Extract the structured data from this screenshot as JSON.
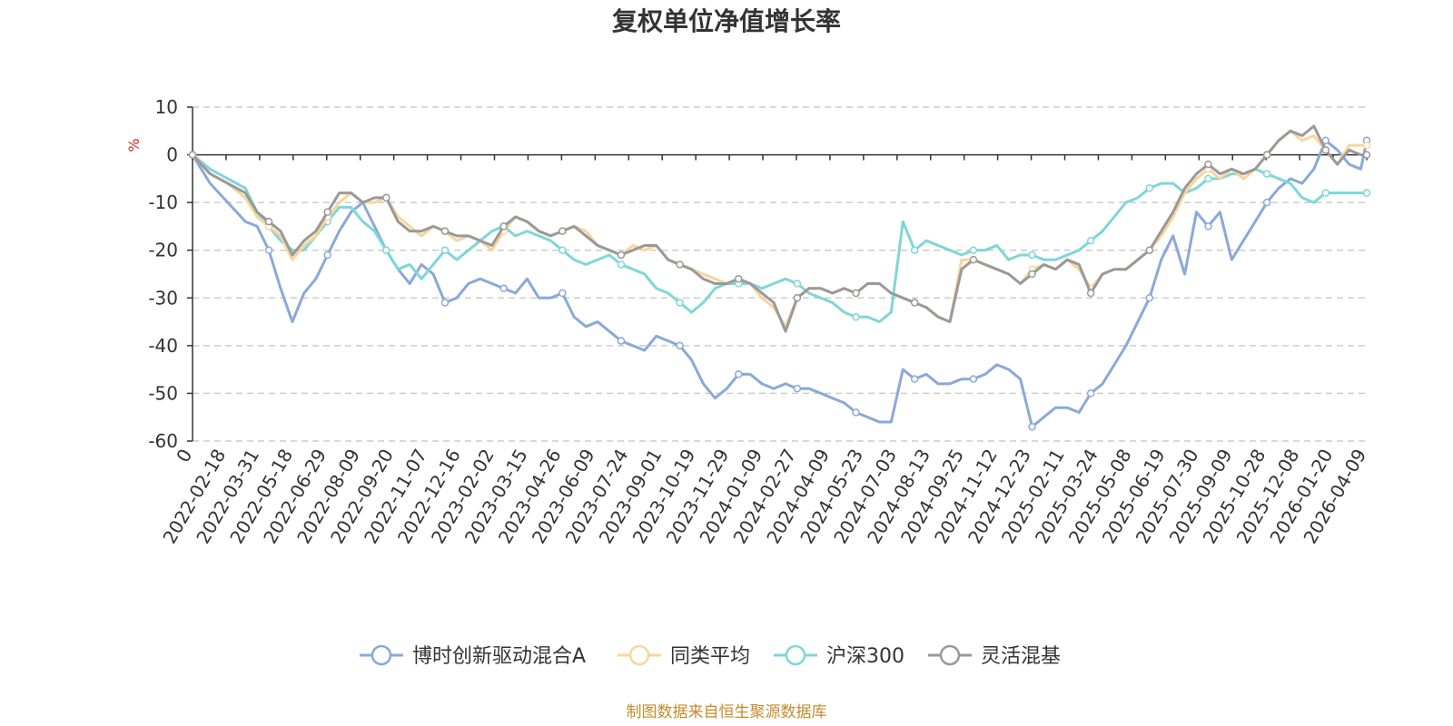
{
  "chart_data": {
    "type": "line",
    "title": "复权单位净值增长率",
    "ylabel": "%",
    "ylim": [
      -60,
      10
    ],
    "yticks": [
      10,
      0,
      -10,
      -20,
      -30,
      -40,
      -50,
      -60
    ],
    "grid": true,
    "legend_position": "bottom",
    "x_labels": [
      "0",
      "2022-02-18",
      "2022-03-31",
      "2022-05-18",
      "2022-06-29",
      "2022-08-09",
      "2022-09-20",
      "2022-11-07",
      "2022-12-16",
      "2023-02-02",
      "2023-03-15",
      "2023-04-26",
      "2023-06-09",
      "2023-07-24",
      "2023-09-01",
      "2023-10-19",
      "2023-11-29",
      "2024-01-09",
      "2024-02-27",
      "2024-04-09",
      "2024-05-23",
      "2024-07-03",
      "2024-08-13",
      "2024-09-25",
      "2024-11-12",
      "2024-12-23",
      "2025-02-11",
      "2025-03-24",
      "2025-05-08",
      "2025-06-19",
      "2025-07-30",
      "2025-09-09",
      "2025-10-28",
      "2025-12-08",
      "2026-01-20",
      "2026-04-09"
    ],
    "x_range": [
      0,
      100
    ],
    "series": [
      {
        "name": "博时创新驱动混合A",
        "color": "#8aa8da",
        "x": [
          0,
          1.5,
          3,
          4.5,
          5.5,
          6.5,
          7.5,
          8.5,
          9.5,
          10.5,
          11.5,
          12.5,
          13.5,
          14.5,
          15.5,
          16.5,
          17.5,
          18.5,
          19.5,
          20.5,
          21.5,
          22.5,
          23.5,
          24.5,
          25.5,
          26.5,
          27.5,
          28.5,
          29.5,
          30.5,
          31.5,
          32.5,
          33.5,
          34.5,
          35.5,
          36.5,
          37.5,
          38.5,
          39.5,
          40.5,
          41.5,
          42.5,
          43.5,
          44.5,
          45.5,
          46.5,
          47.5,
          48.5,
          49.5,
          50.5,
          51.5,
          52.5,
          53.5,
          54.5,
          55.5,
          56.5,
          57.5,
          58.5,
          59.5,
          60.5,
          61.5,
          62.5,
          63.5,
          64.5,
          65.5,
          66.5,
          67.5,
          68.5,
          69.5,
          70.5,
          71.5,
          72.5,
          73.5,
          74.5,
          75.5,
          76.5,
          77.5,
          78.5,
          79.5,
          80.5,
          81.5,
          82.5,
          83.5,
          84.5,
          85.5,
          86.5,
          87.5,
          88.5,
          89.5,
          90.5,
          91.5,
          92.5,
          93.5,
          94.5,
          95.5,
          96.5,
          97.5,
          98.5,
          99.5,
          100
        ],
        "values": [
          0,
          -6,
          -10,
          -14,
          -15,
          -20,
          -28,
          -35,
          -29,
          -26,
          -21,
          -16,
          -12,
          -10,
          -15,
          -20,
          -24,
          -27,
          -23,
          -25,
          -31,
          -30,
          -27,
          -26,
          -27,
          -28,
          -29,
          -26,
          -30,
          -30,
          -29,
          -34,
          -36,
          -35,
          -37,
          -39,
          -40,
          -41,
          -38,
          -39,
          -40,
          -43,
          -48,
          -51,
          -49,
          -46,
          -46,
          -48,
          -49,
          -48,
          -49,
          -49,
          -50,
          -51,
          -52,
          -54,
          -55,
          -56,
          -56,
          -45,
          -47,
          -46,
          -48,
          -48,
          -47,
          -47,
          -46,
          -44,
          -45,
          -47,
          -57,
          -55,
          -53,
          -53,
          -54,
          -50,
          -48,
          -44,
          -40,
          -35,
          -30,
          -22,
          -17,
          -25,
          -12,
          -15,
          -12,
          -22,
          -18,
          -14,
          -10,
          -7,
          -5,
          -6,
          -3,
          3,
          1,
          -2,
          -3,
          3
        ]
      },
      {
        "name": "同类平均",
        "color": "#f8d59a",
        "x": [
          0,
          1.5,
          3,
          4.5,
          5.5,
          6.5,
          7.5,
          8.5,
          9.5,
          10.5,
          11.5,
          12.5,
          13.5,
          14.5,
          15.5,
          16.5,
          17.5,
          18.5,
          19.5,
          20.5,
          21.5,
          22.5,
          23.5,
          24.5,
          25.5,
          26.5,
          27.5,
          28.5,
          29.5,
          30.5,
          31.5,
          32.5,
          33.5,
          34.5,
          35.5,
          36.5,
          37.5,
          38.5,
          39.5,
          40.5,
          41.5,
          42.5,
          43.5,
          44.5,
          45.5,
          46.5,
          47.5,
          48.5,
          49.5,
          50.5,
          51.5,
          52.5,
          53.5,
          54.5,
          55.5,
          56.5,
          57.5,
          58.5,
          59.5,
          60.5,
          61.5,
          62.5,
          63.5,
          64.5,
          65.5,
          66.5,
          67.5,
          68.5,
          69.5,
          70.5,
          71.5,
          72.5,
          73.5,
          74.5,
          75.5,
          76.5,
          77.5,
          78.5,
          79.5,
          80.5,
          81.5,
          82.5,
          83.5,
          84.5,
          85.5,
          86.5,
          87.5,
          88.5,
          89.5,
          90.5,
          91.5,
          92.5,
          93.5,
          94.5,
          95.5,
          96.5,
          97.5,
          98.5,
          99.5,
          100
        ],
        "values": [
          0,
          -4,
          -6,
          -9,
          -13,
          -15,
          -17,
          -22,
          -19,
          -17,
          -13,
          -10,
          -8,
          -10,
          -10,
          -9,
          -13,
          -15,
          -17,
          -15,
          -16,
          -18,
          -17,
          -18,
          -20,
          -16,
          -13,
          -14,
          -16,
          -17,
          -16,
          -15,
          -16,
          -19,
          -20,
          -21,
          -19,
          -20,
          -19,
          -22,
          -23,
          -24,
          -25,
          -26,
          -27,
          -26,
          -27,
          -30,
          -32,
          -36,
          -30,
          -28,
          -28,
          -29,
          -28,
          -29,
          -27,
          -27,
          -29,
          -30,
          -31,
          -32,
          -34,
          -35,
          -22,
          -22,
          -23,
          -24,
          -25,
          -27,
          -24,
          -23,
          -24,
          -22,
          -24,
          -28,
          -25,
          -24,
          -24,
          -22,
          -20,
          -17,
          -13,
          -8,
          -5,
          -3,
          -5,
          -3,
          -5,
          -3,
          0,
          3,
          5,
          3,
          4,
          1,
          -2,
          2,
          2,
          2
        ]
      },
      {
        "name": "沪深300",
        "color": "#7fd6d8",
        "x": [
          0,
          1.5,
          3,
          4.5,
          5.5,
          6.5,
          7.5,
          8.5,
          9.5,
          10.5,
          11.5,
          12.5,
          13.5,
          14.5,
          15.5,
          16.5,
          17.5,
          18.5,
          19.5,
          20.5,
          21.5,
          22.5,
          23.5,
          24.5,
          25.5,
          26.5,
          27.5,
          28.5,
          29.5,
          30.5,
          31.5,
          32.5,
          33.5,
          34.5,
          35.5,
          36.5,
          37.5,
          38.5,
          39.5,
          40.5,
          41.5,
          42.5,
          43.5,
          44.5,
          45.5,
          46.5,
          47.5,
          48.5,
          49.5,
          50.5,
          51.5,
          52.5,
          53.5,
          54.5,
          55.5,
          56.5,
          57.5,
          58.5,
          59.5,
          60.5,
          61.5,
          62.5,
          63.5,
          64.5,
          65.5,
          66.5,
          67.5,
          68.5,
          69.5,
          70.5,
          71.5,
          72.5,
          73.5,
          74.5,
          75.5,
          76.5,
          77.5,
          78.5,
          79.5,
          80.5,
          81.5,
          82.5,
          83.5,
          84.5,
          85.5,
          86.5,
          87.5,
          88.5,
          89.5,
          90.5,
          91.5,
          92.5,
          93.5,
          94.5,
          95.5,
          96.5,
          97.5,
          98.5,
          99.5,
          100
        ],
        "values": [
          0,
          -3,
          -5,
          -7,
          -12,
          -15,
          -18,
          -20,
          -20,
          -17,
          -14,
          -11,
          -11,
          -14,
          -16,
          -20,
          -24,
          -23,
          -26,
          -23,
          -20,
          -22,
          -20,
          -18,
          -16,
          -15,
          -17,
          -16,
          -17,
          -18,
          -20,
          -22,
          -23,
          -22,
          -21,
          -23,
          -24,
          -25,
          -28,
          -29,
          -31,
          -33,
          -31,
          -28,
          -27,
          -27,
          -27,
          -28,
          -27,
          -26,
          -27,
          -29,
          -30,
          -31,
          -33,
          -34,
          -34,
          -35,
          -33,
          -14,
          -20,
          -18,
          -19,
          -20,
          -21,
          -20,
          -20,
          -19,
          -22,
          -21,
          -21,
          -22,
          -22,
          -21,
          -20,
          -18,
          -16,
          -13,
          -10,
          -9,
          -7,
          -6,
          -6,
          -8,
          -7,
          -5,
          -5,
          -4,
          -4,
          -3,
          -4,
          -5,
          -6,
          -9,
          -10,
          -8,
          -8,
          -8,
          -8,
          -8
        ]
      },
      {
        "name": "灵活混基",
        "color": "#999999",
        "x": [
          0,
          1.5,
          3,
          4.5,
          5.5,
          6.5,
          7.5,
          8.5,
          9.5,
          10.5,
          11.5,
          12.5,
          13.5,
          14.5,
          15.5,
          16.5,
          17.5,
          18.5,
          19.5,
          20.5,
          21.5,
          22.5,
          23.5,
          24.5,
          25.5,
          26.5,
          27.5,
          28.5,
          29.5,
          30.5,
          31.5,
          32.5,
          33.5,
          34.5,
          35.5,
          36.5,
          37.5,
          38.5,
          39.5,
          40.5,
          41.5,
          42.5,
          43.5,
          44.5,
          45.5,
          46.5,
          47.5,
          48.5,
          49.5,
          50.5,
          51.5,
          52.5,
          53.5,
          54.5,
          55.5,
          56.5,
          57.5,
          58.5,
          59.5,
          60.5,
          61.5,
          62.5,
          63.5,
          64.5,
          65.5,
          66.5,
          67.5,
          68.5,
          69.5,
          70.5,
          71.5,
          72.5,
          73.5,
          74.5,
          75.5,
          76.5,
          77.5,
          78.5,
          79.5,
          80.5,
          81.5,
          82.5,
          83.5,
          84.5,
          85.5,
          86.5,
          87.5,
          88.5,
          89.5,
          90.5,
          91.5,
          92.5,
          93.5,
          94.5,
          95.5,
          96.5,
          97.5,
          98.5,
          99.5,
          100
        ],
        "values": [
          0,
          -4,
          -6,
          -8,
          -12,
          -14,
          -16,
          -21,
          -18,
          -16,
          -12,
          -8,
          -8,
          -10,
          -9,
          -9,
          -14,
          -16,
          -16,
          -15,
          -16,
          -17,
          -17,
          -18,
          -19,
          -15,
          -13,
          -14,
          -16,
          -17,
          -16,
          -15,
          -17,
          -19,
          -20,
          -21,
          -20,
          -19,
          -19,
          -22,
          -23,
          -24,
          -26,
          -27,
          -27,
          -26,
          -27,
          -29,
          -31,
          -37,
          -30,
          -28,
          -28,
          -29,
          -28,
          -29,
          -27,
          -27,
          -29,
          -30,
          -31,
          -32,
          -34,
          -35,
          -24,
          -22,
          -23,
          -24,
          -25,
          -27,
          -25,
          -23,
          -24,
          -22,
          -23,
          -29,
          -25,
          -24,
          -24,
          -22,
          -20,
          -16,
          -12,
          -7,
          -4,
          -2,
          -4,
          -3,
          -4,
          -3,
          0,
          3,
          5,
          4,
          6,
          1,
          -2,
          1,
          0,
          0
        ]
      }
    ],
    "source_note": "制图数据来自恒生聚源数据库"
  }
}
